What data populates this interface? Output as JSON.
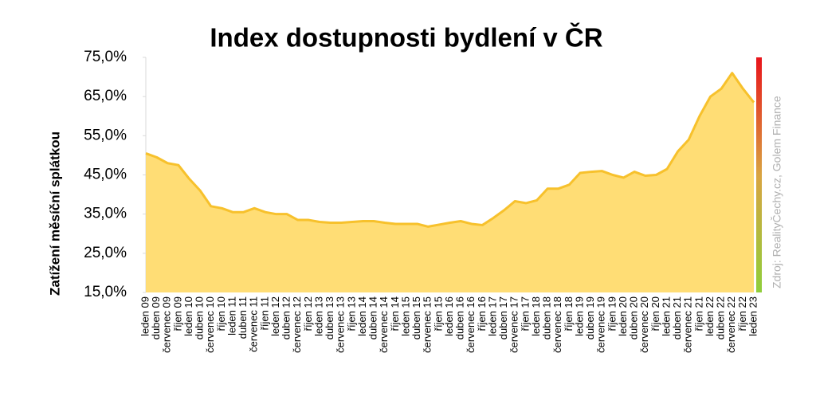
{
  "chart_data": {
    "type": "area",
    "title": "Index dostupnosti bydlení  v ČR",
    "y_label": "Zatížení měsíční splátkou",
    "source": "Zdroj: RealityČechy.cz, Golem Finance",
    "categories": [
      "leden 09",
      "duben 09",
      "červenec 09",
      "říjen 09",
      "leden 10",
      "duben 10",
      "červenec 10",
      "říjen 10",
      "leden 11",
      "duben 11",
      "červenec 11",
      "říjen 11",
      "leden 12",
      "duben 12",
      "červenec 12",
      "říjen 12",
      "leden 13",
      "duben 13",
      "červenec 13",
      "říjen 13",
      "leden 14",
      "duben 14",
      "červenec 14",
      "říjen 14",
      "leden 15",
      "duben 15",
      "červenec 15",
      "říjen 15",
      "leden 16",
      "duben 16",
      "červenec 16",
      "říjen 16",
      "leden 17",
      "duben 17",
      "červenec 17",
      "říjen 17",
      "leden 18",
      "duben 18",
      "červenec 18",
      "říjen 18",
      "leden 19",
      "duben 19",
      "červenec 19",
      "říjen 19",
      "leden 20",
      "duben 20",
      "červenec 20",
      "říjen 20",
      "leden 21",
      "duben 21",
      "červenec 21",
      "říjen 21",
      "leden 22",
      "duben 22",
      "červenec 22",
      "říjen 22",
      "leden 23"
    ],
    "values": [
      50.5,
      49.5,
      48,
      47.5,
      44,
      41,
      37,
      36.5,
      35.5,
      35.5,
      36.5,
      35.5,
      35,
      35,
      33.5,
      33.5,
      33,
      32.8,
      32.8,
      33,
      33.2,
      33.2,
      32.8,
      32.5,
      32.5,
      32.5,
      31.8,
      32.3,
      32.8,
      33.2,
      32.5,
      32.2,
      34,
      36,
      38.3,
      37.8,
      38.5,
      41.5,
      41.5,
      42.5,
      45.5,
      45.8,
      46,
      45,
      44.3,
      45.8,
      44.8,
      45,
      46.5,
      51,
      54,
      60,
      65,
      67,
      71,
      67,
      63.5
    ],
    "color": "#f7c12c",
    "fill": "#ffd966",
    "ylim": [
      15,
      75
    ],
    "yticks": [
      {
        "value": 15,
        "label": "15,0%"
      },
      {
        "value": 25,
        "label": "25,0%"
      },
      {
        "value": 35,
        "label": "35,0%"
      },
      {
        "value": 45,
        "label": "45,0%"
      },
      {
        "value": 55,
        "label": "55,0%"
      },
      {
        "value": 65,
        "label": "65,0%"
      },
      {
        "value": 75,
        "label": "75,0%"
      }
    ],
    "grid": false
  }
}
